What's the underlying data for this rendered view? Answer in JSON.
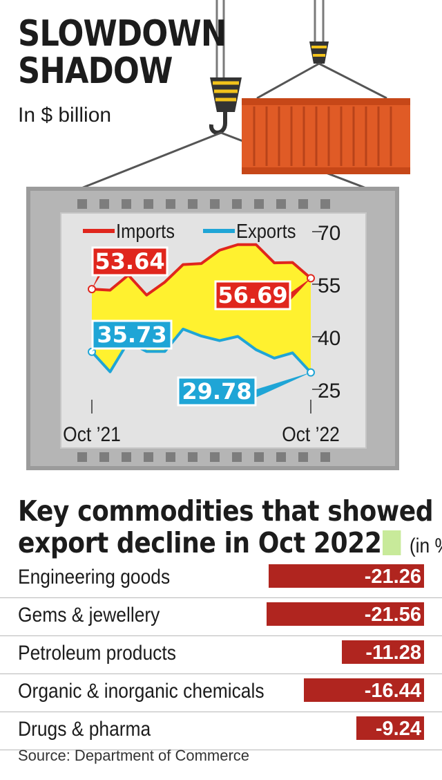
{
  "title_lines": [
    "SLOWDOWN",
    "SHADOW"
  ],
  "subtitle": "In $ billion",
  "chart_data": [
    {
      "type": "line",
      "title": "SLOWDOWN SHADOW",
      "subtitle": "In $ billion",
      "x_labels": [
        "Oct ’21",
        "Oct ’22"
      ],
      "y_ticks": [
        25,
        40,
        55,
        70
      ],
      "ylim": [
        25,
        70
      ],
      "fill_between": true,
      "legend_position": "top",
      "series": [
        {
          "name": "Imports",
          "color": "#e0261d",
          "values": [
            53.6,
            53.3,
            57.6,
            51.9,
            55.6,
            60.6,
            60.9,
            64.7,
            66.3,
            66.3,
            61.1,
            61.2,
            56.7
          ],
          "labels": {
            "first": "53.64",
            "last": "56.69"
          }
        },
        {
          "name": "Exports",
          "color": "#1fa5d6",
          "values": [
            35.7,
            30.0,
            38.6,
            35.8,
            35.8,
            42.2,
            40.2,
            38.9,
            40.1,
            36.3,
            33.9,
            35.4,
            29.8
          ],
          "labels": {
            "first": "35.73",
            "last": "29.78"
          }
        }
      ],
      "colors": {
        "fill": "#fff12f",
        "plot_background": "#e3e3e3"
      }
    },
    {
      "type": "bar",
      "title": "Key commodities that showed export decline in Oct 2022",
      "unit": "(in %)",
      "categories": [
        "Engineering goods",
        "Gems & jewellery",
        "Petroleum products",
        "Organic & inorganic chemicals",
        "Drugs & pharma"
      ],
      "values": [
        -21.26,
        -21.56,
        -11.28,
        -16.44,
        -9.24
      ],
      "value_labels": [
        "-21.26",
        "-21.56",
        "-11.28",
        "-16.44",
        "-9.24"
      ],
      "colors": {
        "bar": "#b0251f"
      }
    }
  ],
  "section": {
    "title_line1": "Key commodities that showed",
    "title_line2": "export decline in Oct 2022",
    "unit": "(in %)"
  },
  "source": "Source: Department of Commerce"
}
